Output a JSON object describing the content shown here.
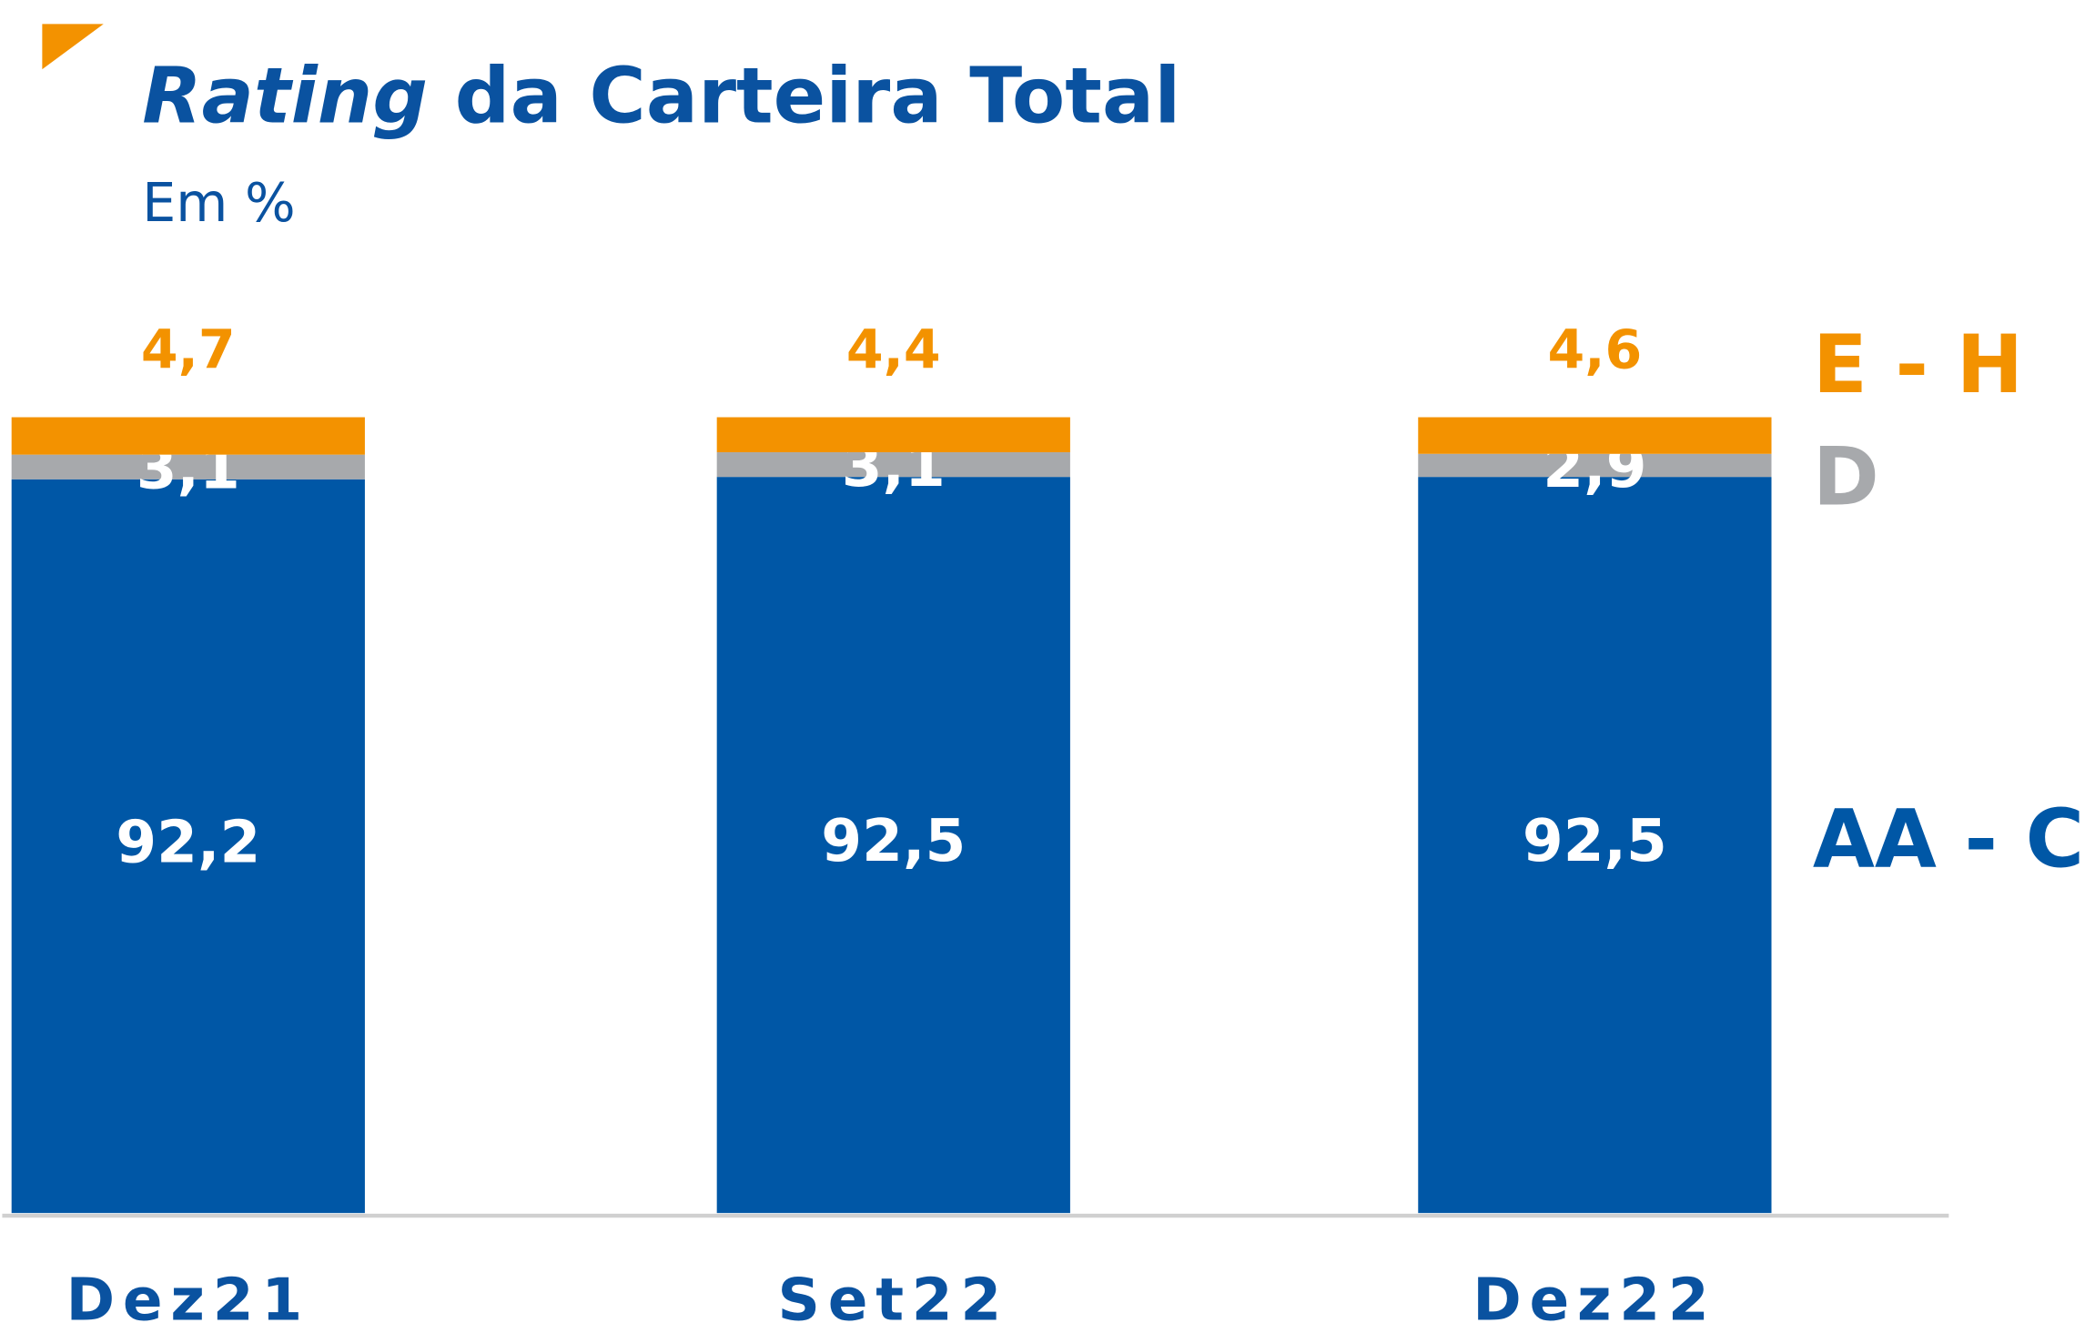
{
  "chart_data": {
    "type": "stacked_bar",
    "title_emphasis": "Rating",
    "title": "da Carteira Total",
    "subtitle": "Em %",
    "categories": [
      "Dez21",
      "Set22",
      "Dez22"
    ],
    "series": [
      {
        "name": "AA - C",
        "color": "#0057a6",
        "values": [
          92.2,
          92.5,
          92.5
        ],
        "value_labels": [
          "92,2",
          "92,5",
          "92,5"
        ]
      },
      {
        "name": "D",
        "color": "#a7a9ac",
        "values": [
          3.1,
          3.1,
          2.9
        ],
        "value_labels": [
          "3,1",
          "3,1",
          "2,9"
        ]
      },
      {
        "name": "E - H",
        "color": "#f39200",
        "values": [
          4.7,
          4.4,
          4.6
        ],
        "value_labels": [
          "4,7",
          "4,4",
          "4,6"
        ]
      }
    ],
    "ylim": [
      0,
      100
    ]
  }
}
